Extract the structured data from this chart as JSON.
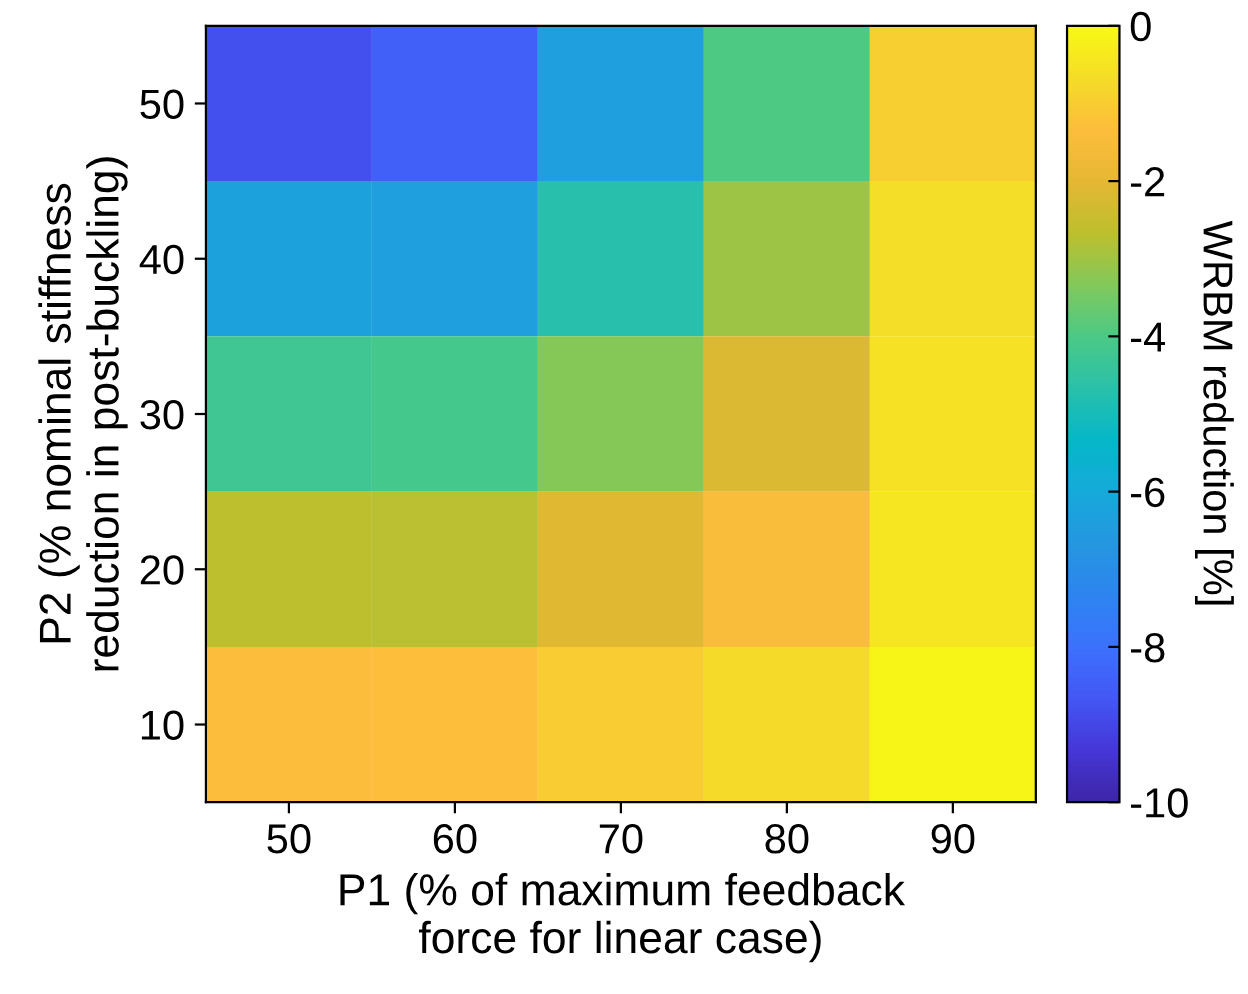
{
  "chart_data": {
    "type": "heatmap",
    "xlabel": "P1 (% of maximum feedback\nforce for linear case)",
    "ylabel": "P2 (% nominal stiffness\nreduction in post-buckling)",
    "clabel": "WRBM reduction [%]",
    "categories": [
      "50",
      "60",
      "70",
      "80",
      "90"
    ],
    "y_categories": [
      "50",
      "40",
      "30",
      "20",
      "10"
    ],
    "cells": [
      [
        -8.82,
        -8.45,
        -6.37,
        -3.98,
        -0.95
      ],
      [
        -6.32,
        -6.37,
        -4.7,
        -3.02,
        -0.66
      ],
      [
        -4.24,
        -4.14,
        -3.3,
        -2.18,
        -0.55
      ],
      [
        -2.66,
        -2.7,
        -2.1,
        -1.44,
        -0.45
      ],
      [
        -1.33,
        -1.32,
        -1.04,
        -0.71,
        -0.15
      ]
    ],
    "clim": [
      -10,
      0
    ],
    "cticks": [
      -10,
      -8,
      -6,
      -4,
      -2,
      0
    ]
  }
}
